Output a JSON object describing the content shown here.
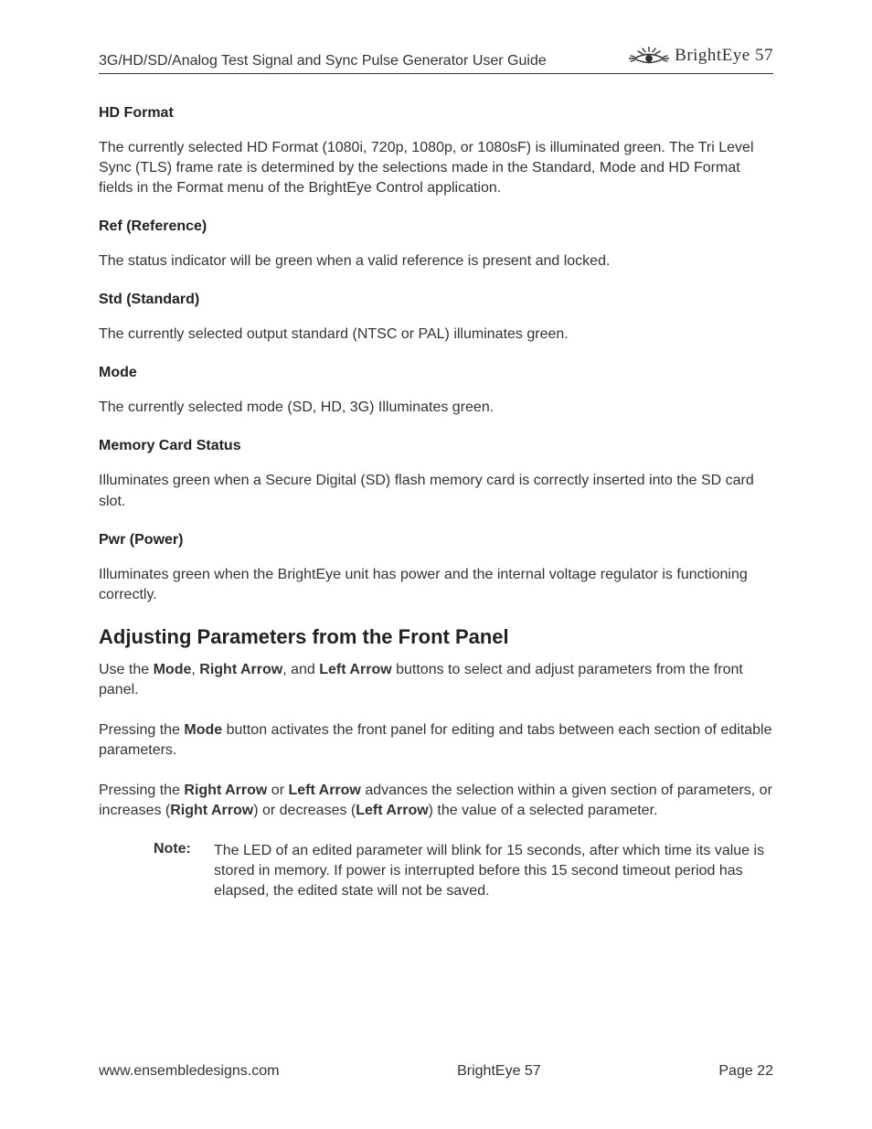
{
  "colors": {
    "text": "#333333",
    "heading": "#222222",
    "rule": "#333333",
    "background": "#ffffff"
  },
  "typography": {
    "body_fontsize_pt": 12,
    "section_heading_fontsize_pt": 12,
    "big_heading_fontsize_pt": 16,
    "line_height": 1.38
  },
  "header": {
    "title": "3G/HD/SD/Analog Test Signal and Sync Pulse Generator User Guide",
    "brand": "BrightEye 57"
  },
  "sections": [
    {
      "heading": "HD Format",
      "body_html": "The currently selected HD Format (1080i, 720p, 1080p, or 1080sF) is illuminated green. The Tri Level Sync (TLS) frame rate is determined by the selections made in the Standard, Mode and HD Format fields in the Format menu of the BrightEye Control application."
    },
    {
      "heading": "Ref (Reference)",
      "body_html": "The status indicator will be green when a valid reference is present and locked."
    },
    {
      "heading": "Std (Standard)",
      "body_html": "The currently selected output standard (NTSC or PAL) illuminates green."
    },
    {
      "heading": "Mode",
      "body_html": "The currently selected mode (SD, HD, 3G) Illuminates green."
    },
    {
      "heading": "Memory Card Status",
      "body_html": "Illuminates green when a Secure Digital (SD) flash memory card is correctly inserted into the SD card slot."
    },
    {
      "heading": "Pwr (Power)",
      "body_html": "Illuminates green when the BrightEye unit has power and the internal voltage regulator is functioning correctly."
    }
  ],
  "main": {
    "heading": "Adjusting Parameters from the Front Panel",
    "paras": [
      "Use the <b>Mode</b>, <b>Right Arrow</b>, and <b>Left Arrow</b> buttons to select and adjust parameters from the front panel.",
      "Pressing the <b>Mode</b> button activates the front panel for editing and tabs between each section of editable parameters.",
      "Pressing the <b>Right Arrow</b> or <b>Left Arrow</b> advances the selection within a given section of parameters, or increases (<b>Right Arrow</b>) or decreases (<b>Left Arrow</b>) the value of a selected parameter."
    ],
    "note_label": "Note:",
    "note_body": "The LED of an edited parameter will blink for 15 seconds, after which time its value is stored in memory. If power is interrupted before this 15 second timeout period has elapsed, the edited state will not be saved."
  },
  "footer": {
    "left": "www.ensembledesigns.com",
    "center": "BrightEye 57",
    "right": "Page 22"
  }
}
